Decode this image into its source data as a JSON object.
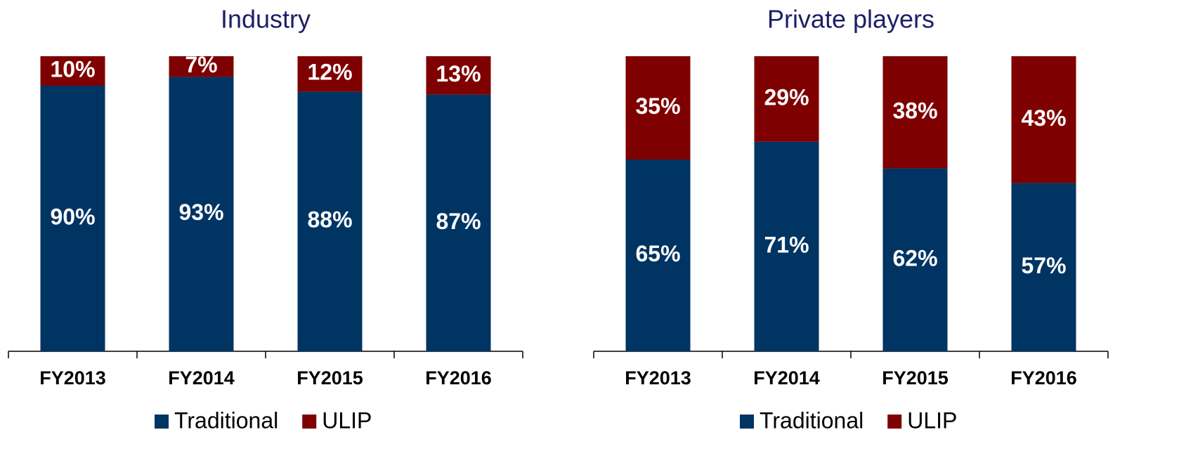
{
  "chart_data": [
    {
      "type": "bar",
      "title": "Industry",
      "stacked": true,
      "categories": [
        "FY2013",
        "FY2014",
        "FY2015",
        "FY2016"
      ],
      "ylim": [
        0,
        100
      ],
      "series": [
        {
          "name": "Traditional",
          "color": "#003462",
          "values": [
            90,
            93,
            88,
            87
          ],
          "value_labels": [
            "90%",
            "93%",
            "88%",
            "87%"
          ]
        },
        {
          "name": "ULIP",
          "color": "#7f0000",
          "values": [
            10,
            7,
            12,
            13
          ],
          "value_labels": [
            "10%",
            "7%",
            "12%",
            "13%"
          ]
        }
      ]
    },
    {
      "type": "bar",
      "title": "Private players",
      "stacked": true,
      "categories": [
        "FY2013",
        "FY2014",
        "FY2015",
        "FY2016"
      ],
      "ylim": [
        0,
        100
      ],
      "series": [
        {
          "name": "Traditional",
          "color": "#003462",
          "values": [
            65,
            71,
            62,
            57
          ],
          "value_labels": [
            "65%",
            "71%",
            "62%",
            "57%"
          ]
        },
        {
          "name": "ULIP",
          "color": "#7f0000",
          "values": [
            35,
            29,
            38,
            43
          ],
          "value_labels": [
            "35%",
            "29%",
            "38%",
            "43%"
          ]
        }
      ]
    }
  ]
}
